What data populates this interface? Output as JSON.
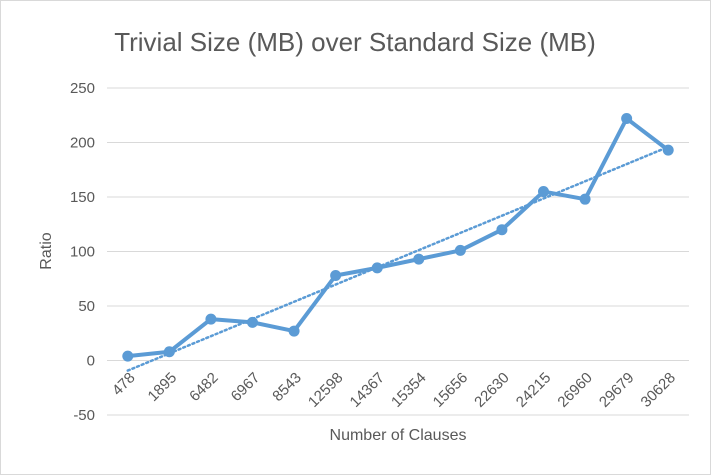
{
  "chart_data": {
    "type": "line",
    "title": "Trivial Size (MB) over Standard Size (MB)",
    "xlabel": "Number of Clauses",
    "ylabel": "Ratio",
    "categories": [
      "478",
      "1895",
      "6482",
      "6967",
      "8543",
      "12598",
      "14367",
      "15354",
      "15656",
      "22630",
      "24215",
      "26960",
      "29679",
      "30628"
    ],
    "series": [
      {
        "values": [
          4,
          8,
          38,
          35,
          27,
          78,
          85,
          93,
          101,
          120,
          155,
          148,
          222,
          193
        ],
        "color": "#5b9bd5",
        "marker": "circle"
      }
    ],
    "trendline": {
      "type": "linear",
      "style": "dotted",
      "color": "#5b9bd5"
    },
    "yticks": [
      -50,
      0,
      50,
      100,
      150,
      200,
      250
    ],
    "ylim": [
      -50,
      250
    ],
    "grid": true,
    "legend": "none"
  }
}
